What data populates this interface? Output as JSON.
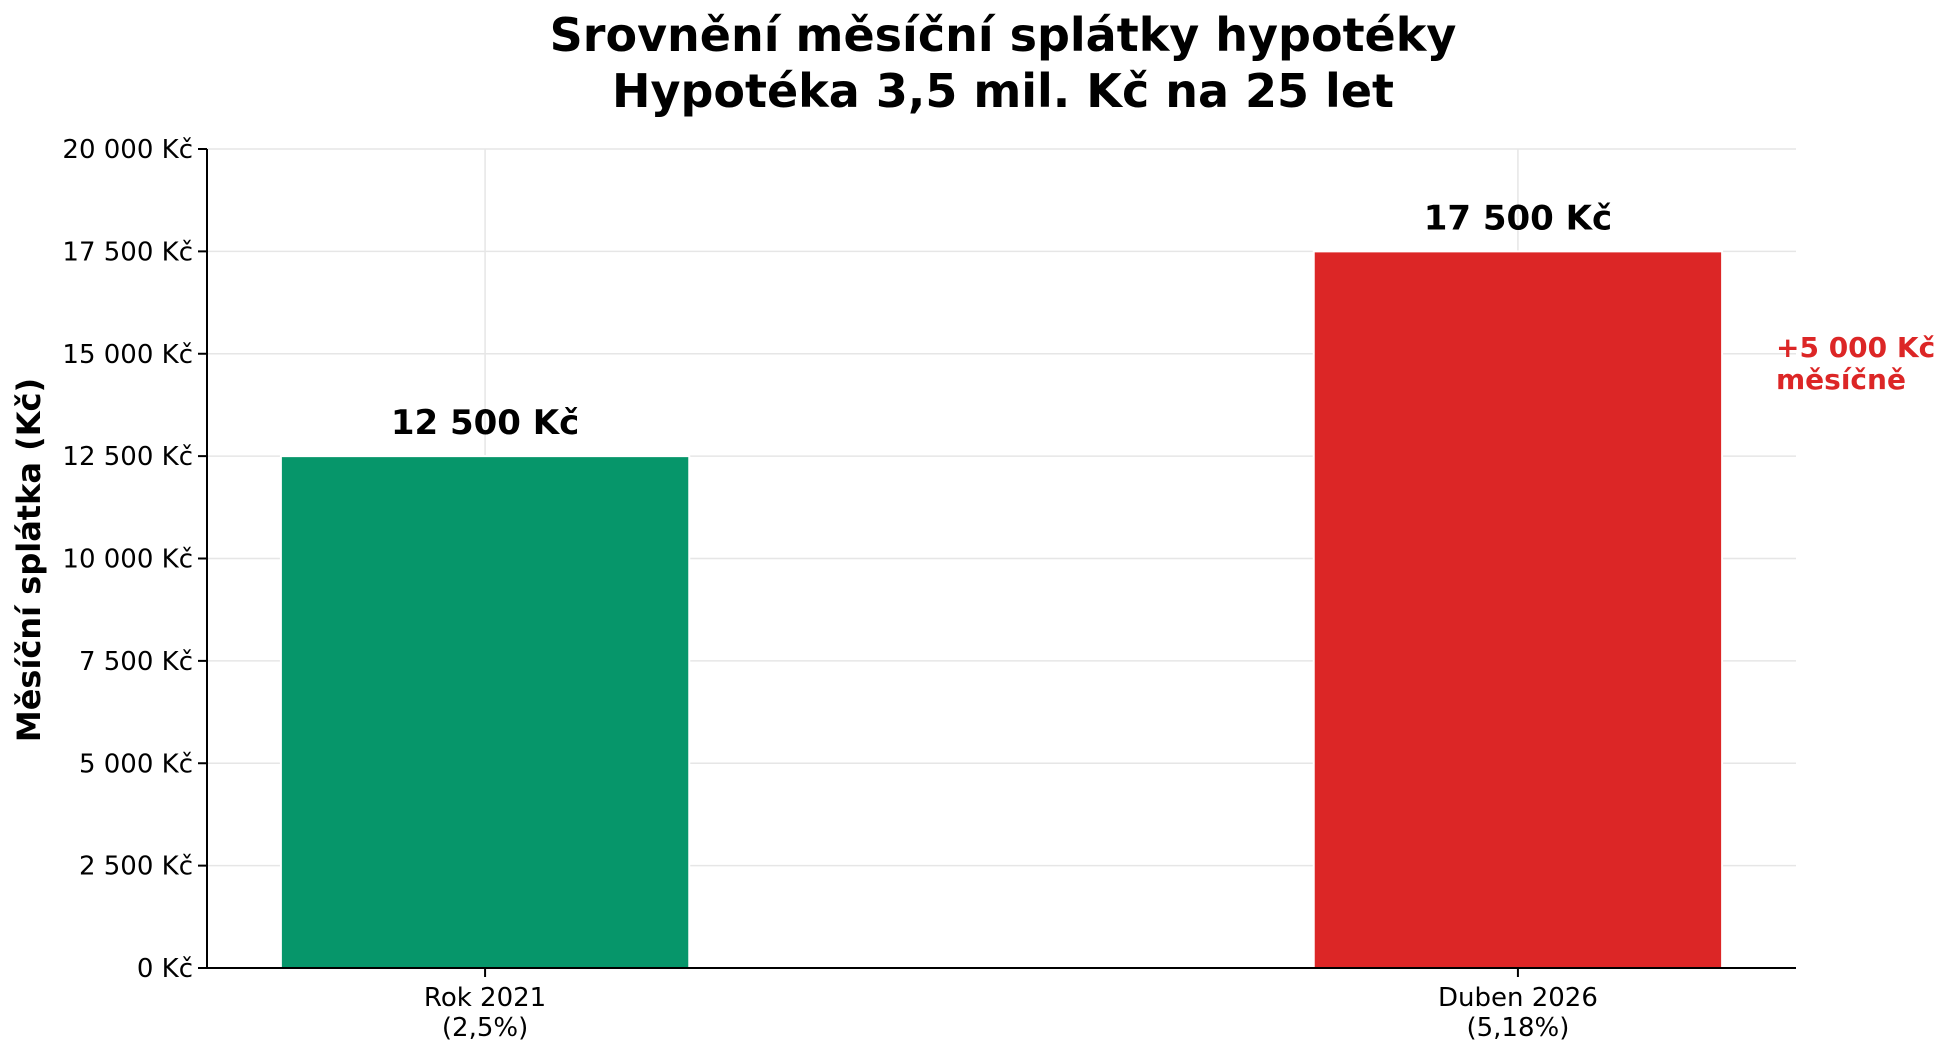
{
  "chart_data": {
    "type": "bar",
    "title": "Srovnění měsíční splátky hypotéky",
    "subtitle": "Hypotéka 3,5 mil. Kč na 25 let",
    "ylabel": "Měsíční splátka (Kč)",
    "xlabel": "",
    "ylim": [
      0,
      20000
    ],
    "yticks": [
      0,
      2500,
      5000,
      7500,
      10000,
      12500,
      15000,
      17500,
      20000
    ],
    "ytick_labels": [
      "0 Kč",
      "2 500 Kč",
      "5 000 Kč",
      "7 500 Kč",
      "10 000 Kč",
      "12 500 Kč",
      "15 000 Kč",
      "17 500 Kč",
      "20 000 Kč"
    ],
    "categories": [
      [
        "Rok 2021",
        "(2,5%)"
      ],
      [
        "Duben 2026",
        "(5,18%)"
      ]
    ],
    "values": [
      12500,
      17500
    ],
    "value_labels": [
      "12 500 Kč",
      "17 500 Kč"
    ],
    "colors": [
      "#06966a",
      "#dc2626"
    ],
    "annotation": {
      "lines": [
        "+5 000 Kč",
        "měsíčně"
      ],
      "color": "#dc2626"
    },
    "grid": true,
    "legend": "none"
  }
}
